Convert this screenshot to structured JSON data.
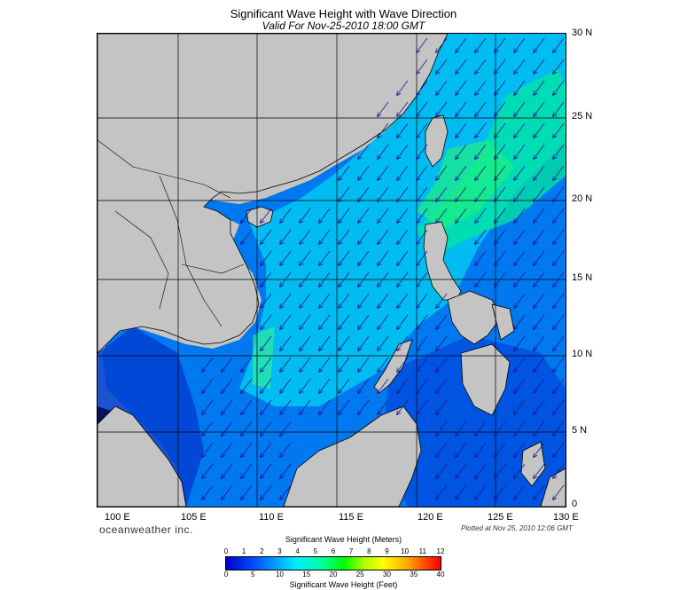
{
  "title": "Significant Wave Height with Wave Direction",
  "subtitle": "Valid For Nov-25-2010 18:00 GMT",
  "map": {
    "lon_range": [
      100,
      130
    ],
    "lat_range": [
      0,
      30
    ],
    "lat_labels": [
      "30 N",
      "25 N",
      "20 N",
      "15 N",
      "10 N",
      "5 N",
      "0"
    ],
    "lon_labels": [
      "100 E",
      "105 E",
      "110 E",
      "115 E",
      "120 E",
      "125 E",
      "130 E"
    ],
    "arrow_direction": "toward southwest",
    "colors": {
      "land": "#c4c4c4",
      "grid": "#000000",
      "arrow": "#1a1a8c"
    }
  },
  "brand": "oceanweather inc.",
  "plotted_at": "Plotted at Nov 25, 2010 12:06 GMT",
  "legend": {
    "title_meters": "Significant Wave Height (Meters)",
    "title_feet": "Significant Wave Height (Feet)",
    "meter_ticks": [
      "0",
      "1",
      "2",
      "3",
      "4",
      "5",
      "6",
      "7",
      "8",
      "9",
      "10",
      "11",
      "12"
    ],
    "feet_ticks": [
      "0",
      "5",
      "10",
      "15",
      "20",
      "25",
      "30",
      "35",
      "40"
    ]
  }
}
